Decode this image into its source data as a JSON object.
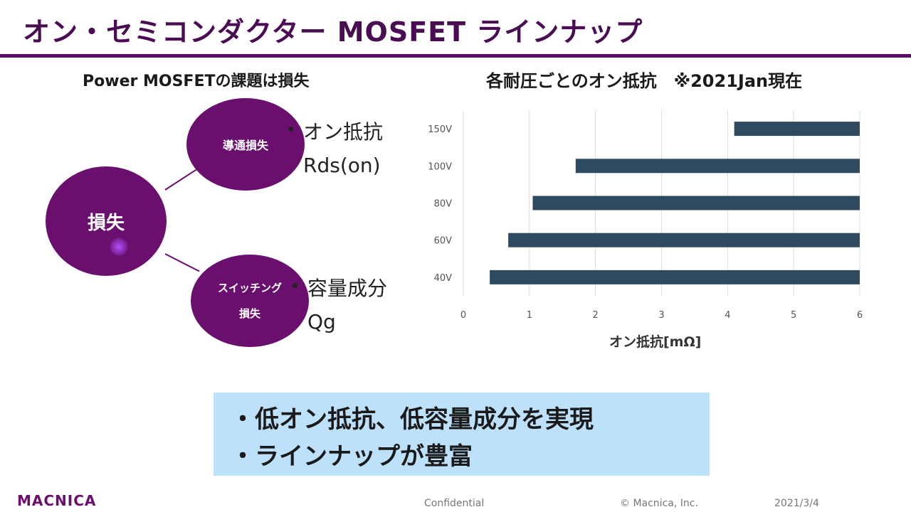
{
  "slide": {
    "title": "オン・セミコンダクター MOSFET ラインナップ"
  },
  "diagram": {
    "heading": "Power MOSFETの課題は損失",
    "root": "損失",
    "conduction": {
      "circle": "導通損失",
      "label1": "オン抵抗",
      "label2": "Rds(on)"
    },
    "switching": {
      "circle_line1": "スイッチング",
      "circle_line2": "損失",
      "label1": "容量成分",
      "label2": "Qg"
    },
    "accent_color": "#6a0f6e"
  },
  "chart_heading": "各耐圧ごとのオン抵抗　※2021Jan現在",
  "chart_data": {
    "type": "bar",
    "orientation": "horizontal",
    "title": "各耐圧ごとのオン抵抗　※2021Jan現在",
    "xlabel": "オン抵抗[mΩ]",
    "ylabel": "",
    "categories": [
      "150V",
      "100V",
      "80V",
      "60V",
      "40V"
    ],
    "series": [
      {
        "bar_start": [
          4.1,
          1.7,
          1.05,
          0.68,
          0.4
        ],
        "bar_end": [
          6,
          6,
          6,
          6,
          6
        ]
      }
    ],
    "xlim": [
      0,
      6
    ],
    "xticks": [
      "0",
      "1",
      "2",
      "3",
      "4",
      "5",
      "6"
    ],
    "grid": "vertical",
    "bar_color": "#2f4a5f"
  },
  "callout": {
    "line1": "・低オン抵抗、低容量成分を実現",
    "line2": "・ラインナップが豊富",
    "background": "#bde0fb"
  },
  "footer": {
    "logo": "MACNICA",
    "confidential": "Confidential",
    "copyright": "© Macnica, Inc.",
    "date": "2021/3/4"
  }
}
